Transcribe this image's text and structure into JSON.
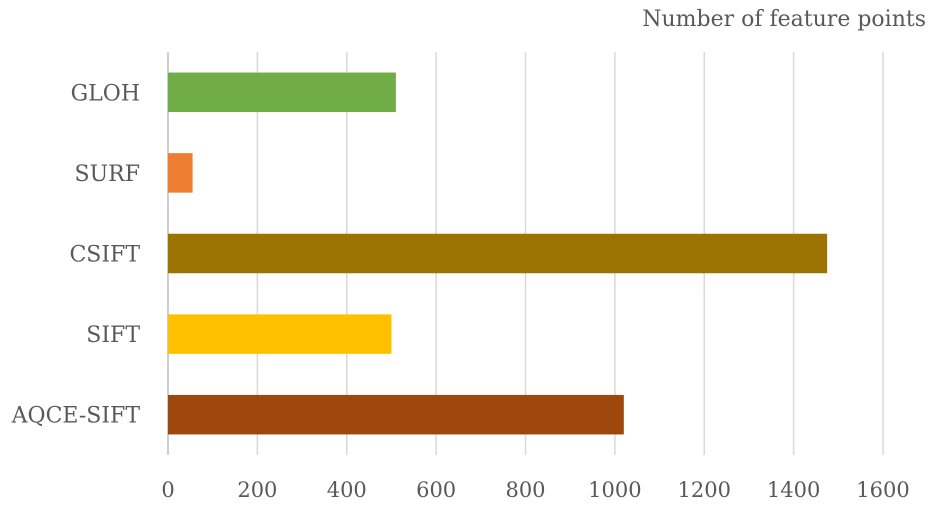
{
  "chart_data": {
    "type": "bar",
    "orientation": "horizontal",
    "title": "",
    "xlabel": "Number of feature points",
    "ylabel": "",
    "categories": [
      "GLOH",
      "SURF",
      "CSIFT",
      "SIFT",
      "AQCE-SIFT"
    ],
    "values": [
      510,
      55,
      1475,
      500,
      1020
    ],
    "colors": [
      "#70ad47",
      "#ed7d31",
      "#9a7300",
      "#ffc000",
      "#9e480e"
    ],
    "xlim": [
      0,
      1600
    ],
    "xticks": [
      0,
      200,
      400,
      600,
      800,
      1000,
      1200,
      1400,
      1600
    ],
    "grid": true,
    "legend": "none"
  }
}
